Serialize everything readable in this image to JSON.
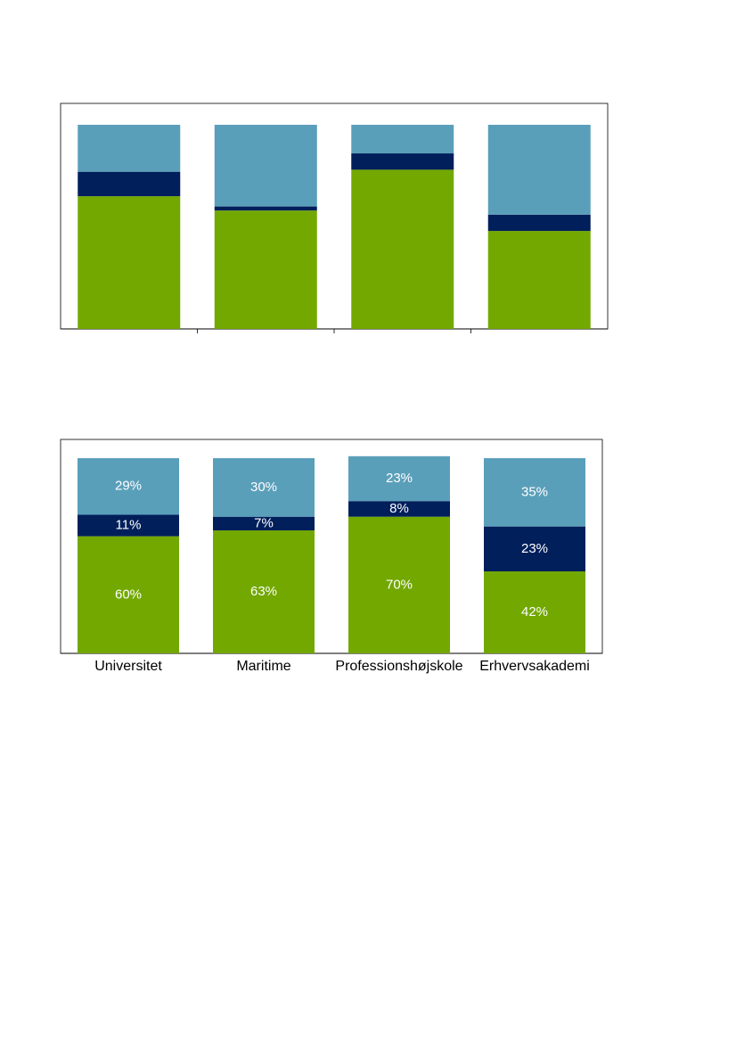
{
  "chart_data": [
    {
      "type": "stacked_bar",
      "categories": [
        null,
        null,
        null,
        null
      ],
      "ylim": [
        0,
        100
      ],
      "series": [
        {
          "color": "#72a800",
          "values": [
            65,
            58,
            78,
            48
          ]
        },
        {
          "color": "#001f5b",
          "values": [
            12,
            2,
            8,
            8
          ]
        },
        {
          "color": "#5a9fba",
          "values": [
            23,
            40,
            14,
            44
          ]
        }
      ]
    },
    {
      "type": "stacked_bar",
      "categories": [
        "Universitet",
        "Maritime",
        "Professionshøjskole",
        "Erhvervsakademi"
      ],
      "ylim": [
        0,
        100
      ],
      "series": [
        {
          "color": "#72a800",
          "values": [
            60,
            63,
            70,
            42
          ],
          "value_labels": [
            "60%",
            "63%",
            "70%",
            "42%"
          ]
        },
        {
          "color": "#001f5b",
          "values": [
            11,
            7,
            8,
            23
          ],
          "value_labels": [
            "11%",
            "7%",
            "8%",
            "23%"
          ]
        },
        {
          "color": "#5a9fba",
          "values": [
            29,
            30,
            23,
            35
          ],
          "value_labels": [
            "29%",
            "30%",
            "23%",
            "35%"
          ]
        }
      ]
    }
  ]
}
